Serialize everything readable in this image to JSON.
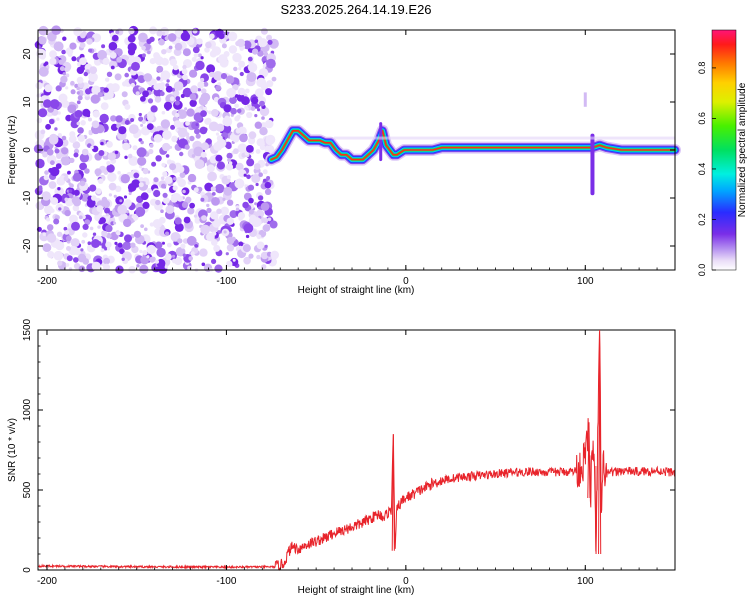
{
  "title": "S233.2025.264.14.19.E26",
  "chart_data": [
    {
      "type": "heatmap",
      "xlabel": "Height of straight line (km)",
      "ylabel": "Frequency (Hz)",
      "xlim": [
        -205,
        150
      ],
      "ylim": [
        -25,
        25
      ],
      "xticks": [
        -200,
        -100,
        0,
        100
      ],
      "yticks": [
        -20,
        -10,
        0,
        10,
        20
      ],
      "noise_region_x": [
        -205,
        -73
      ],
      "ridge": {
        "x": [
          -75,
          -72,
          -69,
          -66,
          -63,
          -60,
          -57,
          -54,
          -51,
          -48,
          -45,
          -42,
          -39,
          -36,
          -33,
          -30,
          -27,
          -24,
          -21,
          -18,
          -15,
          -13,
          -11,
          -9,
          -7,
          -5,
          -3,
          -1,
          2,
          6,
          10,
          15,
          20,
          30,
          40,
          50,
          60,
          70,
          80,
          90,
          95,
          100,
          104,
          108,
          112,
          120,
          130,
          140,
          150
        ],
        "y": [
          -2,
          -1.5,
          0,
          2,
          4,
          4,
          3,
          2,
          2,
          2,
          1.5,
          1.5,
          0,
          -1,
          -1,
          -2,
          -2,
          -2,
          -1,
          0,
          2,
          4,
          1,
          0,
          -1,
          -1,
          -0.5,
          0,
          0,
          0,
          0,
          0,
          0.5,
          0.5,
          0.5,
          0.5,
          0.5,
          0.5,
          0.5,
          0.5,
          0.5,
          0.5,
          0.5,
          1,
          0.5,
          0,
          0,
          0,
          0
        ]
      },
      "colorbar": {
        "label": "Normalized spectral amplitude",
        "range": [
          0,
          0.95
        ],
        "ticks": [
          "0.0",
          "0.2",
          "0.4",
          "0.6",
          "0.8"
        ]
      }
    },
    {
      "type": "line",
      "xlabel": "Height of straight line (km)",
      "ylabel": "SNR (10 * v/v)",
      "xlim": [
        -205,
        150
      ],
      "ylim": [
        0,
        1500
      ],
      "xticks": [
        -200,
        -100,
        0,
        100
      ],
      "yticks": [
        0,
        500,
        1000,
        1500
      ],
      "color": "#e8242b",
      "series": {
        "x": [
          -205,
          -150,
          -100,
          -73,
          -68,
          -65,
          -63,
          -60,
          -55,
          -50,
          -45,
          -40,
          -35,
          -30,
          -25,
          -20,
          -15,
          -12,
          -10,
          -8,
          -7,
          -6,
          -5,
          -3,
          0,
          5,
          10,
          15,
          20,
          25,
          30,
          40,
          50,
          60,
          70,
          80,
          90,
          95,
          98,
          100,
          102,
          103,
          104,
          105,
          106,
          107,
          108,
          109,
          110,
          112,
          115,
          120,
          130,
          140,
          150
        ],
        "y": [
          25,
          20,
          18,
          20,
          40,
          120,
          150,
          130,
          160,
          180,
          200,
          230,
          250,
          270,
          290,
          320,
          350,
          330,
          360,
          380,
          850,
          100,
          380,
          420,
          450,
          480,
          510,
          540,
          560,
          570,
          580,
          590,
          600,
          610,
          615,
          610,
          615,
          620,
          650,
          700,
          900,
          450,
          800,
          600,
          100,
          880,
          1500,
          300,
          650,
          600,
          610,
          620,
          615,
          620,
          610
        ]
      }
    }
  ]
}
